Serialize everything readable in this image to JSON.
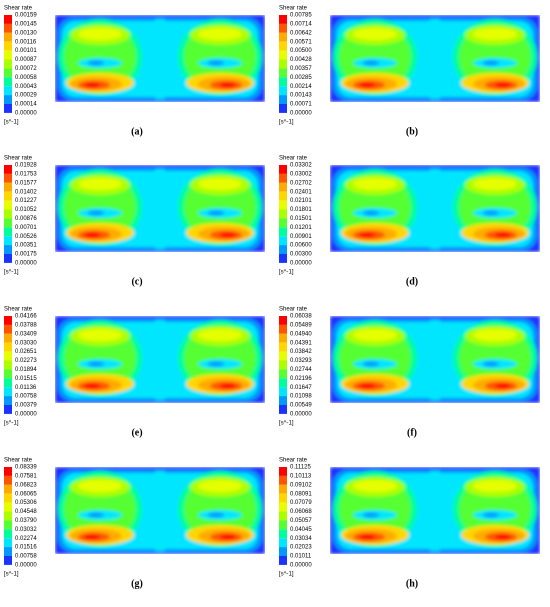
{
  "panels": [
    {
      "legend_title": "Shear rate",
      "levels": [
        "0.00159",
        "0.00145",
        "0.00130",
        "0.00116",
        "0.00101",
        "0.00087",
        "0.00072",
        "0.00058",
        "0.00043",
        "0.00029",
        "0.00014",
        "0.00000"
      ],
      "unit": "[s^-1]",
      "caption": "(a)"
    },
    {
      "legend_title": "Shear rate",
      "levels": [
        "0.00785",
        "0.00714",
        "0.00642",
        "0.00571",
        "0.00500",
        "0.00428",
        "0.00357",
        "0.00285",
        "0.00214",
        "0.00143",
        "0.00071",
        "0.00000"
      ],
      "unit": "[s^-1]",
      "caption": "(b)"
    },
    {
      "legend_title": "Shear rate",
      "levels": [
        "0.01928",
        "0.01753",
        "0.01577",
        "0.01402",
        "0.01227",
        "0.01052",
        "0.00876",
        "0.00701",
        "0.00526",
        "0.00351",
        "0.00175",
        "0.00000"
      ],
      "unit": "[s^-1]",
      "caption": "(c)"
    },
    {
      "legend_title": "Shear rate",
      "levels": [
        "0.03302",
        "0.03002",
        "0.02702",
        "0.02401",
        "0.02101",
        "0.01801",
        "0.01501",
        "0.01201",
        "0.00901",
        "0.00600",
        "0.00300",
        "0.00000"
      ],
      "unit": "[s^-1]",
      "caption": "(d)"
    },
    {
      "legend_title": "Shear rate",
      "levels": [
        "0.04166",
        "0.03788",
        "0.03409",
        "0.03030",
        "0.02651",
        "0.02273",
        "0.01894",
        "0.01515",
        "0.01136",
        "0.00758",
        "0.00379",
        "0.00000"
      ],
      "unit": "[s^-1]",
      "caption": "(e)"
    },
    {
      "legend_title": "Shear rate",
      "levels": [
        "0.06038",
        "0.05489",
        "0.04940",
        "0.04391",
        "0.03842",
        "0.03293",
        "0.02744",
        "0.02196",
        "0.01647",
        "0.01098",
        "0.00549",
        "0.00000"
      ],
      "unit": "[s^-1]",
      "caption": "(f)"
    },
    {
      "legend_title": "Shear rate",
      "levels": [
        "0.08339",
        "0.07581",
        "0.06823",
        "0.06065",
        "0.05306",
        "0.04548",
        "0.03790",
        "0.03032",
        "0.02274",
        "0.01516",
        "0.00758",
        "0.00000"
      ],
      "unit": "[s^-1]",
      "caption": "(g)"
    },
    {
      "legend_title": "Shear rate",
      "levels": [
        "0.11125",
        "0.10113",
        "0.09102",
        "0.08091",
        "0.07079",
        "0.06068",
        "0.05057",
        "0.04045",
        "0.03034",
        "0.02023",
        "0.01011",
        "0.00000"
      ],
      "unit": "[s^-1]",
      "caption": "(h)"
    }
  ]
}
